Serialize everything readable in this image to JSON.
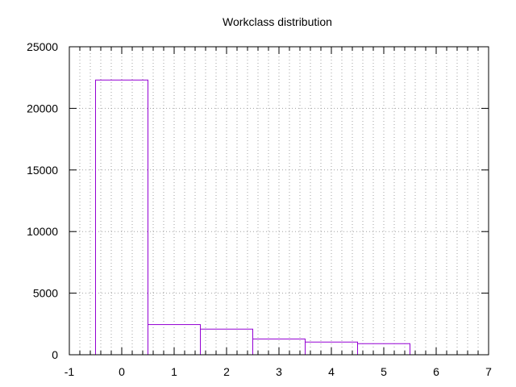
{
  "chart_data": {
    "type": "bar",
    "title": "Workclass distribution",
    "xlabel": "",
    "ylabel": "",
    "x": [
      0,
      1,
      2,
      3,
      4,
      5
    ],
    "values": [
      22300,
      2450,
      2080,
      1280,
      1030,
      900
    ],
    "bar_width": 1,
    "xlim": [
      -1,
      7
    ],
    "ylim": [
      0,
      25000
    ],
    "xticks": [
      -1,
      0,
      1,
      2,
      3,
      4,
      5,
      6,
      7
    ],
    "yticks": [
      0,
      5000,
      10000,
      15000,
      20000,
      25000
    ],
    "grid": "dotted, major and minor",
    "bar_style": "outline",
    "bar_color": "#9400d3",
    "legend": "none"
  }
}
